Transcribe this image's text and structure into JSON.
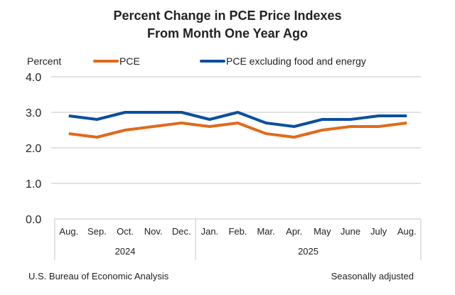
{
  "chart_data": {
    "type": "line",
    "title": [
      "Percent Change in PCE Price Indexes",
      "From Month One Year Ago"
    ],
    "ylabel": "Percent",
    "ylim": [
      0,
      4
    ],
    "yticks": [
      "0.0",
      "1.0",
      "2.0",
      "3.0",
      "4.0"
    ],
    "grid": true,
    "legend_placement": "top",
    "categories": [
      "Aug.",
      "Sep.",
      "Oct.",
      "Nov.",
      "Dec.",
      "Jan.",
      "Feb.",
      "Mar.",
      "Apr.",
      "May",
      "June",
      "July",
      "Aug."
    ],
    "year_groups": [
      {
        "label": "2024",
        "count": 5
      },
      {
        "label": "2025",
        "count": 8
      }
    ],
    "series": [
      {
        "name": "PCE",
        "color": "#E06A1B",
        "values": [
          2.4,
          2.3,
          2.5,
          2.6,
          2.7,
          2.6,
          2.7,
          2.4,
          2.3,
          2.5,
          2.6,
          2.6,
          2.7
        ]
      },
      {
        "name": "PCE excluding food and energy",
        "color": "#0B4F9E",
        "values": [
          2.9,
          2.8,
          3.0,
          3.0,
          3.0,
          2.8,
          3.0,
          2.7,
          2.6,
          2.8,
          2.8,
          2.9,
          2.9
        ]
      }
    ]
  },
  "footer": {
    "source": "U.S. Bureau of Economic Analysis",
    "note": "Seasonally adjusted"
  }
}
